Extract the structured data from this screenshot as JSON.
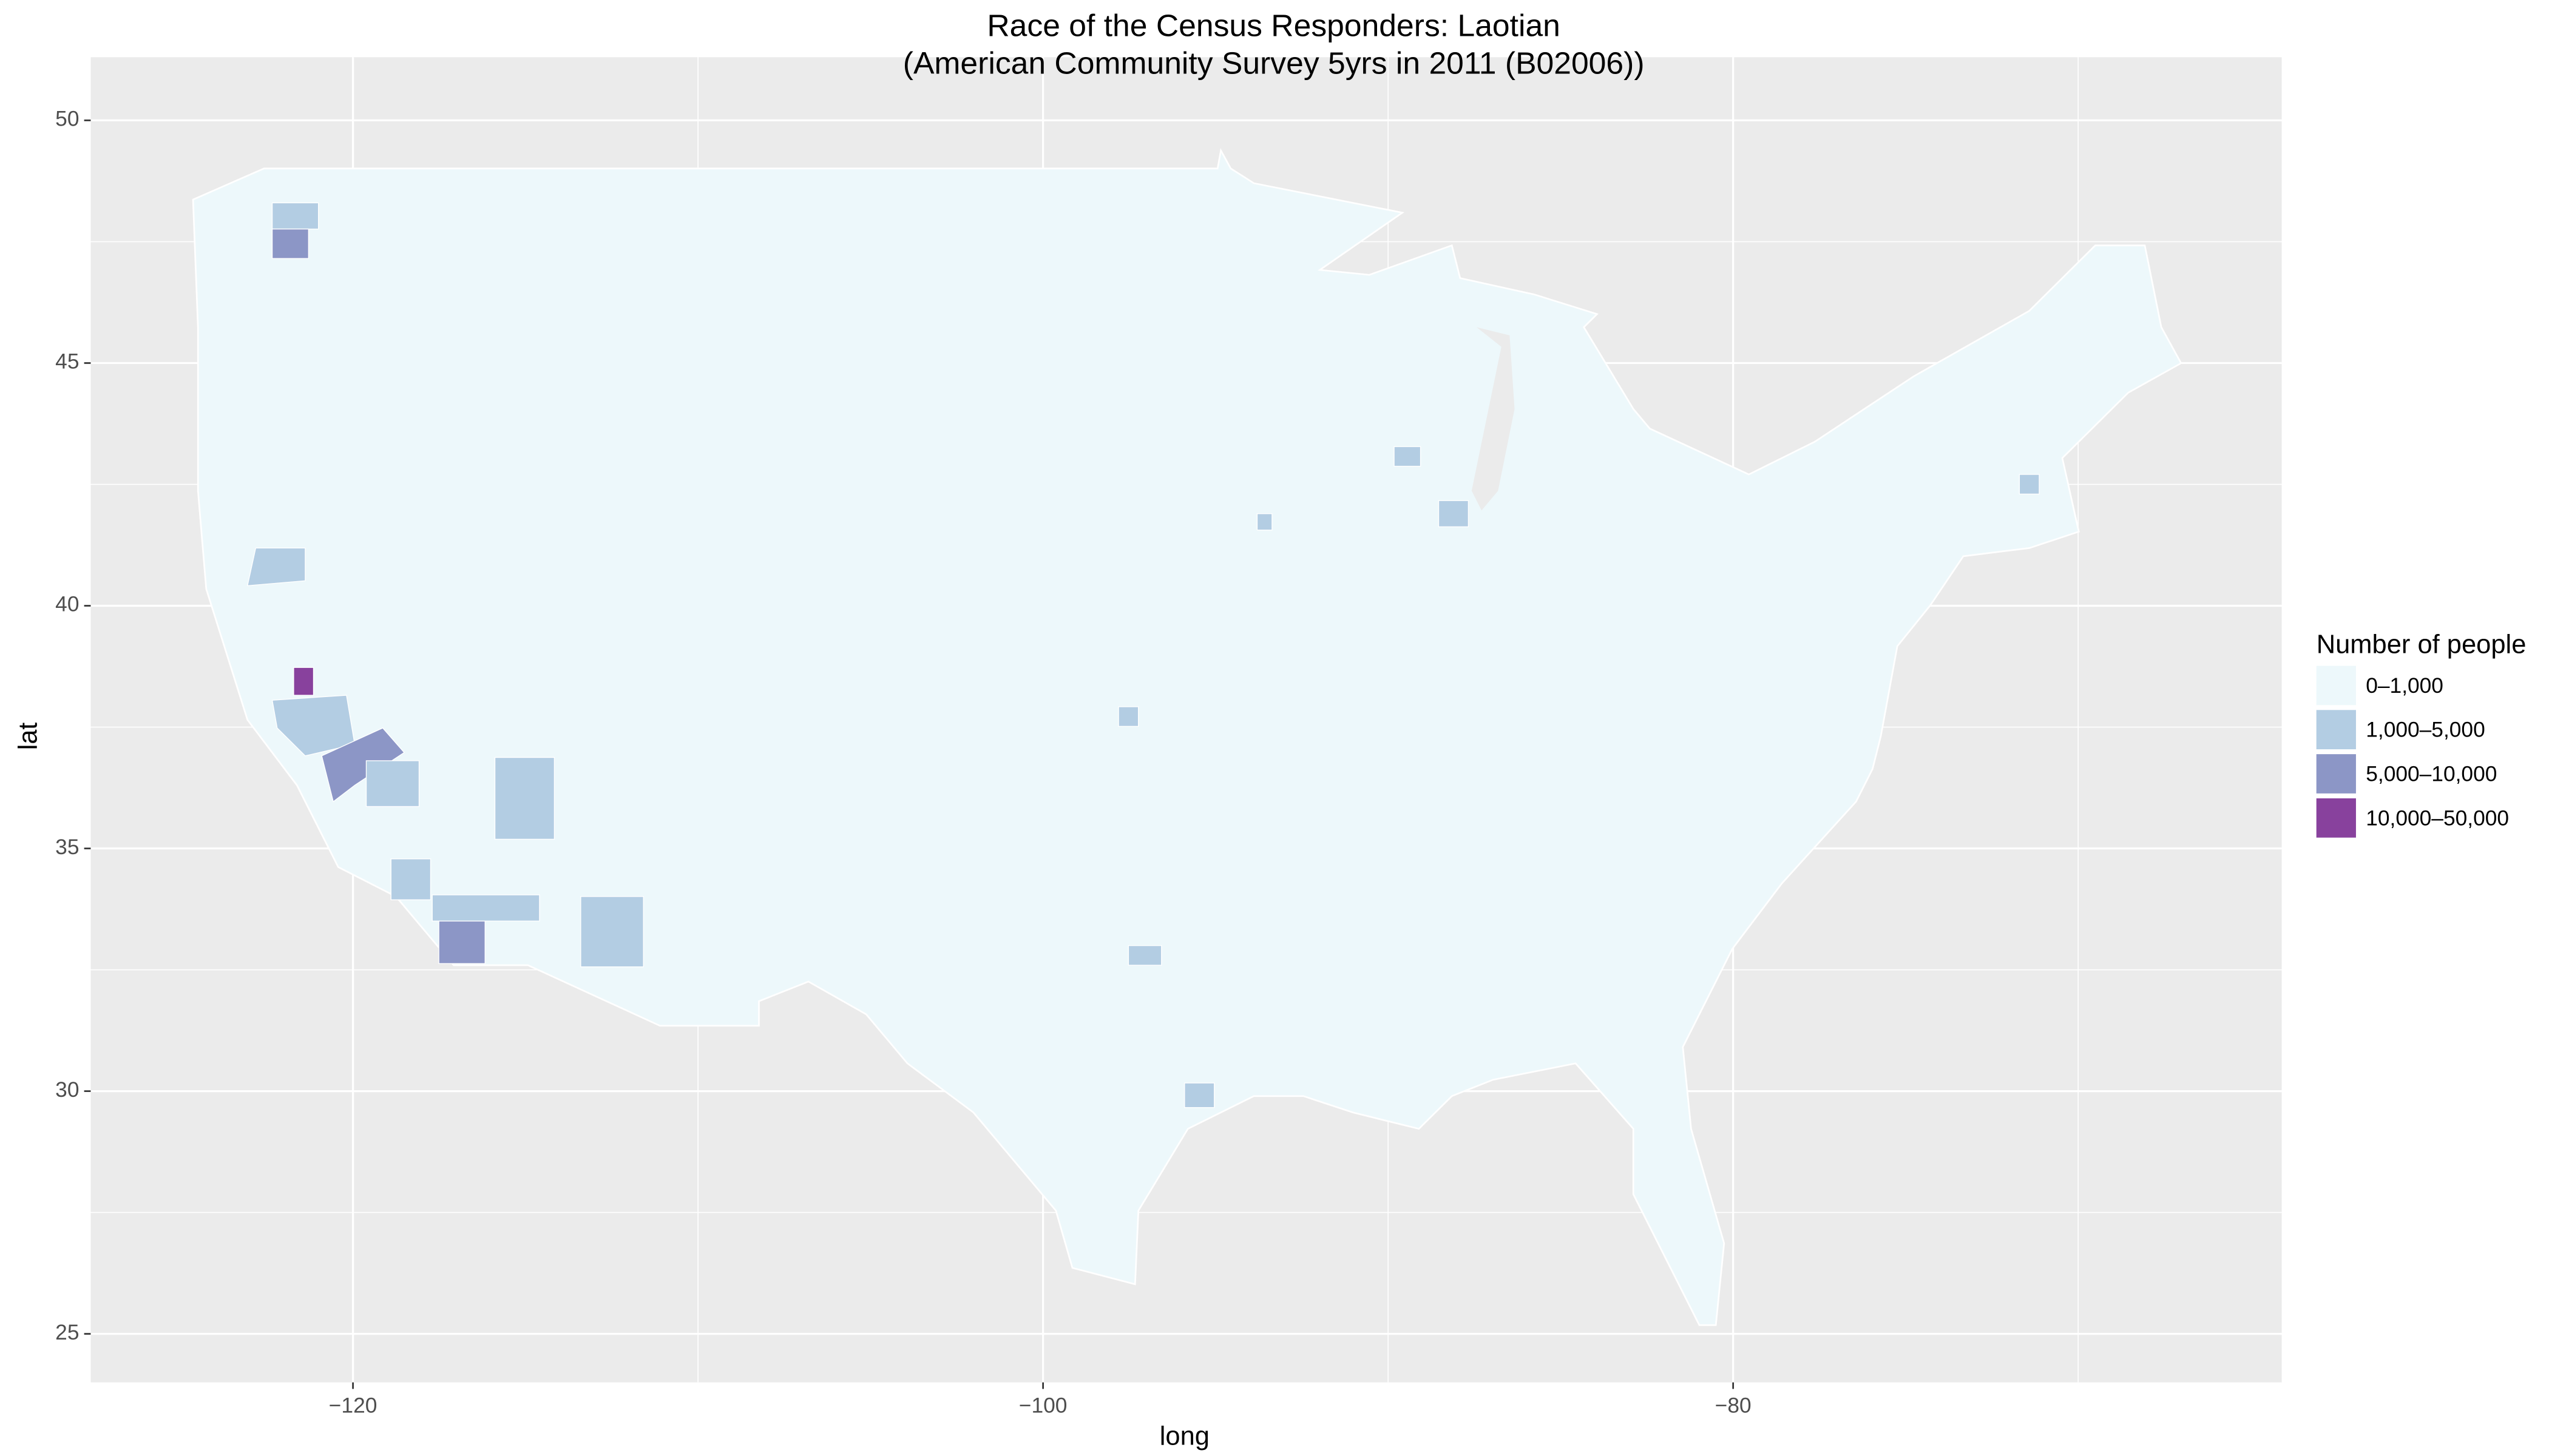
{
  "chart_data": {
    "type": "map",
    "title": "Race of the Census Responders: Laotian",
    "subtitle": "(American Community Survey 5yrs in 2011 (B02006))",
    "x_label": "long",
    "y_label": "lat",
    "xlim": [
      -127.6,
      -64.1
    ],
    "ylim": [
      24,
      51.3
    ],
    "xticks": [
      {
        "value": -120,
        "label": "−120"
      },
      {
        "value": -100,
        "label": "−100"
      },
      {
        "value": -80,
        "label": "−80"
      }
    ],
    "yticks": [
      25,
      30,
      35,
      40,
      45,
      50
    ],
    "grid": true,
    "legend": {
      "title": "Number of people",
      "labels": [
        "0–1,000",
        "1,000–5,000",
        "5,000–10,000",
        "10,000–50,000"
      ],
      "colors": [
        "#edf8fb",
        "#b3cde3",
        "#8c96c6",
        "#88419d"
      ]
    }
  }
}
